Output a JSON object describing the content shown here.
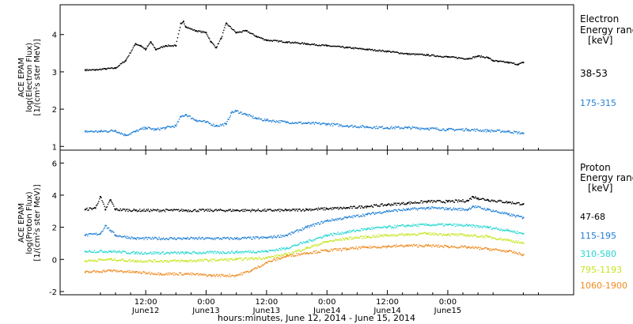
{
  "chart_data": [
    {
      "type": "scatter",
      "ylabel": [
        "ACE EPAM",
        "log(Electron Flux)",
        "[1/(cm²s ster MeV)]"
      ],
      "ylim": [
        0.9,
        4.8
      ],
      "yticks": [
        1,
        2,
        3,
        4
      ],
      "legend_title": [
        "Electron",
        "Energy range",
        "[keV]"
      ],
      "series": [
        {
          "name": "38-53",
          "color": "#000000",
          "x": [
            0,
            2,
            4,
            6,
            8,
            10,
            11,
            12,
            13,
            14,
            16,
            18,
            19,
            19.5,
            20,
            22,
            24,
            25,
            26,
            27,
            28,
            30,
            32,
            34,
            36,
            40,
            44,
            48,
            52,
            56,
            60,
            64,
            68,
            72,
            76,
            78,
            80,
            81,
            82,
            84,
            86,
            87
          ],
          "y": [
            3.05,
            3.05,
            3.08,
            3.1,
            3.3,
            3.75,
            3.7,
            3.6,
            3.8,
            3.6,
            3.7,
            3.7,
            4.3,
            4.35,
            4.2,
            4.1,
            4.05,
            3.8,
            3.65,
            3.9,
            4.3,
            4.05,
            4.1,
            3.95,
            3.85,
            3.8,
            3.75,
            3.7,
            3.65,
            3.6,
            3.55,
            3.48,
            3.45,
            3.4,
            3.35,
            3.42,
            3.38,
            3.3,
            3.28,
            3.25,
            3.2,
            3.25
          ]
        },
        {
          "name": "175-315",
          "color": "#1f7fd6",
          "x": [
            0,
            3,
            6,
            8,
            10,
            12,
            14,
            16,
            18,
            19,
            20,
            22,
            24,
            26,
            28,
            29,
            30,
            32,
            34,
            36,
            40,
            44,
            48,
            52,
            56,
            60,
            64,
            68,
            72,
            76,
            80,
            84,
            87
          ],
          "y": [
            1.4,
            1.4,
            1.42,
            1.3,
            1.4,
            1.5,
            1.45,
            1.5,
            1.55,
            1.8,
            1.85,
            1.7,
            1.65,
            1.55,
            1.6,
            1.9,
            1.95,
            1.85,
            1.75,
            1.7,
            1.65,
            1.62,
            1.6,
            1.55,
            1.52,
            1.5,
            1.5,
            1.48,
            1.45,
            1.45,
            1.42,
            1.4,
            1.35
          ]
        }
      ]
    },
    {
      "type": "scatter",
      "ylabel": [
        "ACE EPAM",
        "log(Proton Flux)",
        "[1/(cm²s ster MeV)]"
      ],
      "ylim": [
        -2.2,
        6.8
      ],
      "yticks": [
        -2,
        0,
        2,
        4,
        6
      ],
      "legend_title": [
        "Proton",
        "Energy range",
        "[keV]"
      ],
      "series": [
        {
          "name": "47-68",
          "color": "#000000",
          "x": [
            0,
            2,
            3,
            4,
            5,
            6,
            10,
            20,
            30,
            40,
            44,
            48,
            52,
            56,
            60,
            64,
            68,
            72,
            76,
            77,
            78,
            80,
            84,
            87
          ],
          "y": [
            3.1,
            3.2,
            3.9,
            3.1,
            3.7,
            3.1,
            3.05,
            3.05,
            3.05,
            3.05,
            3.1,
            3.15,
            3.2,
            3.3,
            3.4,
            3.5,
            3.6,
            3.6,
            3.65,
            3.9,
            3.8,
            3.7,
            3.55,
            3.45
          ]
        },
        {
          "name": "115-195",
          "color": "#1f7fd6",
          "x": [
            0,
            3,
            4,
            5,
            6,
            10,
            20,
            30,
            36,
            40,
            44,
            48,
            52,
            56,
            60,
            64,
            68,
            72,
            76,
            77,
            80,
            84,
            87
          ],
          "y": [
            1.5,
            1.6,
            2.1,
            1.8,
            1.5,
            1.3,
            1.3,
            1.3,
            1.35,
            1.5,
            2.0,
            2.4,
            2.6,
            2.8,
            3.0,
            3.1,
            3.2,
            3.15,
            3.1,
            3.3,
            3.1,
            2.8,
            2.6
          ]
        },
        {
          "name": "310-580",
          "color": "#22d6d0",
          "x": [
            0,
            5,
            10,
            20,
            30,
            36,
            40,
            44,
            48,
            52,
            56,
            60,
            64,
            68,
            72,
            76,
            80,
            84,
            87
          ],
          "y": [
            0.5,
            0.5,
            0.4,
            0.4,
            0.45,
            0.5,
            0.7,
            1.1,
            1.5,
            1.7,
            1.9,
            2.0,
            2.1,
            2.15,
            2.15,
            2.1,
            2.0,
            1.8,
            1.6
          ]
        },
        {
          "name": "795-1193",
          "color": "#c8e41e",
          "x": [
            0,
            5,
            10,
            20,
            30,
            36,
            40,
            44,
            48,
            52,
            56,
            60,
            64,
            68,
            72,
            76,
            80,
            84,
            87
          ],
          "y": [
            -0.1,
            0.0,
            -0.1,
            -0.1,
            0.0,
            0.1,
            0.3,
            0.7,
            1.1,
            1.3,
            1.4,
            1.5,
            1.55,
            1.6,
            1.55,
            1.5,
            1.4,
            1.2,
            1.0
          ]
        },
        {
          "name": "1060-1900",
          "color": "#f08a1e",
          "x": [
            0,
            5,
            10,
            15,
            20,
            25,
            30,
            33,
            36,
            40,
            44,
            48,
            52,
            56,
            60,
            64,
            68,
            72,
            76,
            80,
            84,
            87
          ],
          "y": [
            -0.8,
            -0.7,
            -0.8,
            -0.9,
            -0.9,
            -1.0,
            -1.0,
            -0.7,
            -0.2,
            0.2,
            0.4,
            0.55,
            0.65,
            0.75,
            0.8,
            0.85,
            0.85,
            0.8,
            0.75,
            0.65,
            0.5,
            0.3
          ]
        }
      ]
    }
  ],
  "x_axis": {
    "xlim": [
      -5,
      97
    ],
    "ticks": [
      {
        "x": 12,
        "time": "12:00",
        "date": "June12"
      },
      {
        "x": 24,
        "time": "0:00",
        "date": "June13"
      },
      {
        "x": 36,
        "time": "12:00",
        "date": "June13"
      },
      {
        "x": 48,
        "time": "0:00",
        "date": "June14"
      },
      {
        "x": 60,
        "time": "12:00",
        "date": "June14"
      },
      {
        "x": 72,
        "time": "0:00",
        "date": "June15"
      }
    ],
    "xlabel": "hours:minutes, June 12, 2014 - June 15, 2014"
  }
}
